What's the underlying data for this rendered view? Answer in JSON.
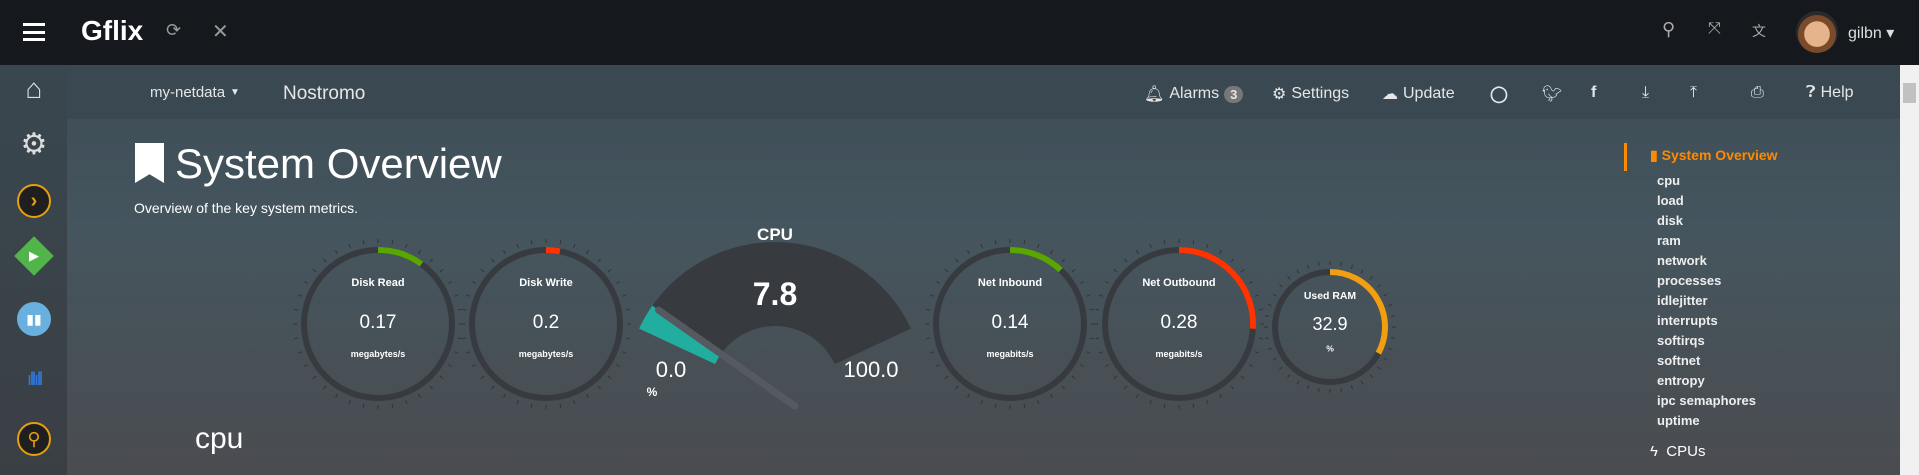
{
  "topbar": {
    "app_title": "Gflix",
    "user": "gilbn",
    "icons": [
      "menu-icon",
      "refresh-icon",
      "close-icon",
      "search-icon",
      "fullscreen-icon",
      "translate-icon"
    ]
  },
  "navbar": {
    "host_menu": "my-netdata",
    "host_name": "Nostromo",
    "alarms_label": "Alarms",
    "alarms_count": "3",
    "settings_label": "Settings",
    "update_label": "Update",
    "help_label": "Help"
  },
  "sidebar": {
    "apps": [
      "home",
      "settings",
      "plex",
      "emby",
      "calibre",
      "soundcloud",
      "ombi-search"
    ]
  },
  "section": {
    "title": "System Overview",
    "subtitle": "Overview of the key system metrics.",
    "next_heading": "cpu"
  },
  "gauges": [
    {
      "title": "Disk Read",
      "value": "0.17",
      "units": "megabytes/s",
      "fraction": 0.1,
      "color": "#5aa600"
    },
    {
      "title": "Disk Write",
      "value": "0.2",
      "units": "megabytes/s",
      "fraction": 0.03,
      "color": "#ff3300"
    },
    {
      "title": "Net Inbound",
      "value": "0.14",
      "units": "megabits/s",
      "fraction": 0.12,
      "color": "#5aa600"
    },
    {
      "title": "Net Outbound",
      "value": "0.28",
      "units": "megabits/s",
      "fraction": 0.26,
      "color": "#ff3300"
    },
    {
      "title": "Used RAM",
      "value": "32.9",
      "units": "%",
      "fraction": 0.329,
      "color": "#f19e11"
    }
  ],
  "cpu_gauge": {
    "title": "CPU",
    "value": "7.8",
    "min": "0.0",
    "max": "100.0",
    "units": "%",
    "percent": 7.8,
    "fill_color": "#22ae9e"
  },
  "right_nav": {
    "active": "System Overview",
    "items": [
      "cpu",
      "load",
      "disk",
      "ram",
      "network",
      "processes",
      "idlejitter",
      "interrupts",
      "softirqs",
      "softnet",
      "entropy",
      "ipc semaphores",
      "uptime"
    ],
    "next_section": "CPUs",
    "accent": "#ff8a00"
  }
}
